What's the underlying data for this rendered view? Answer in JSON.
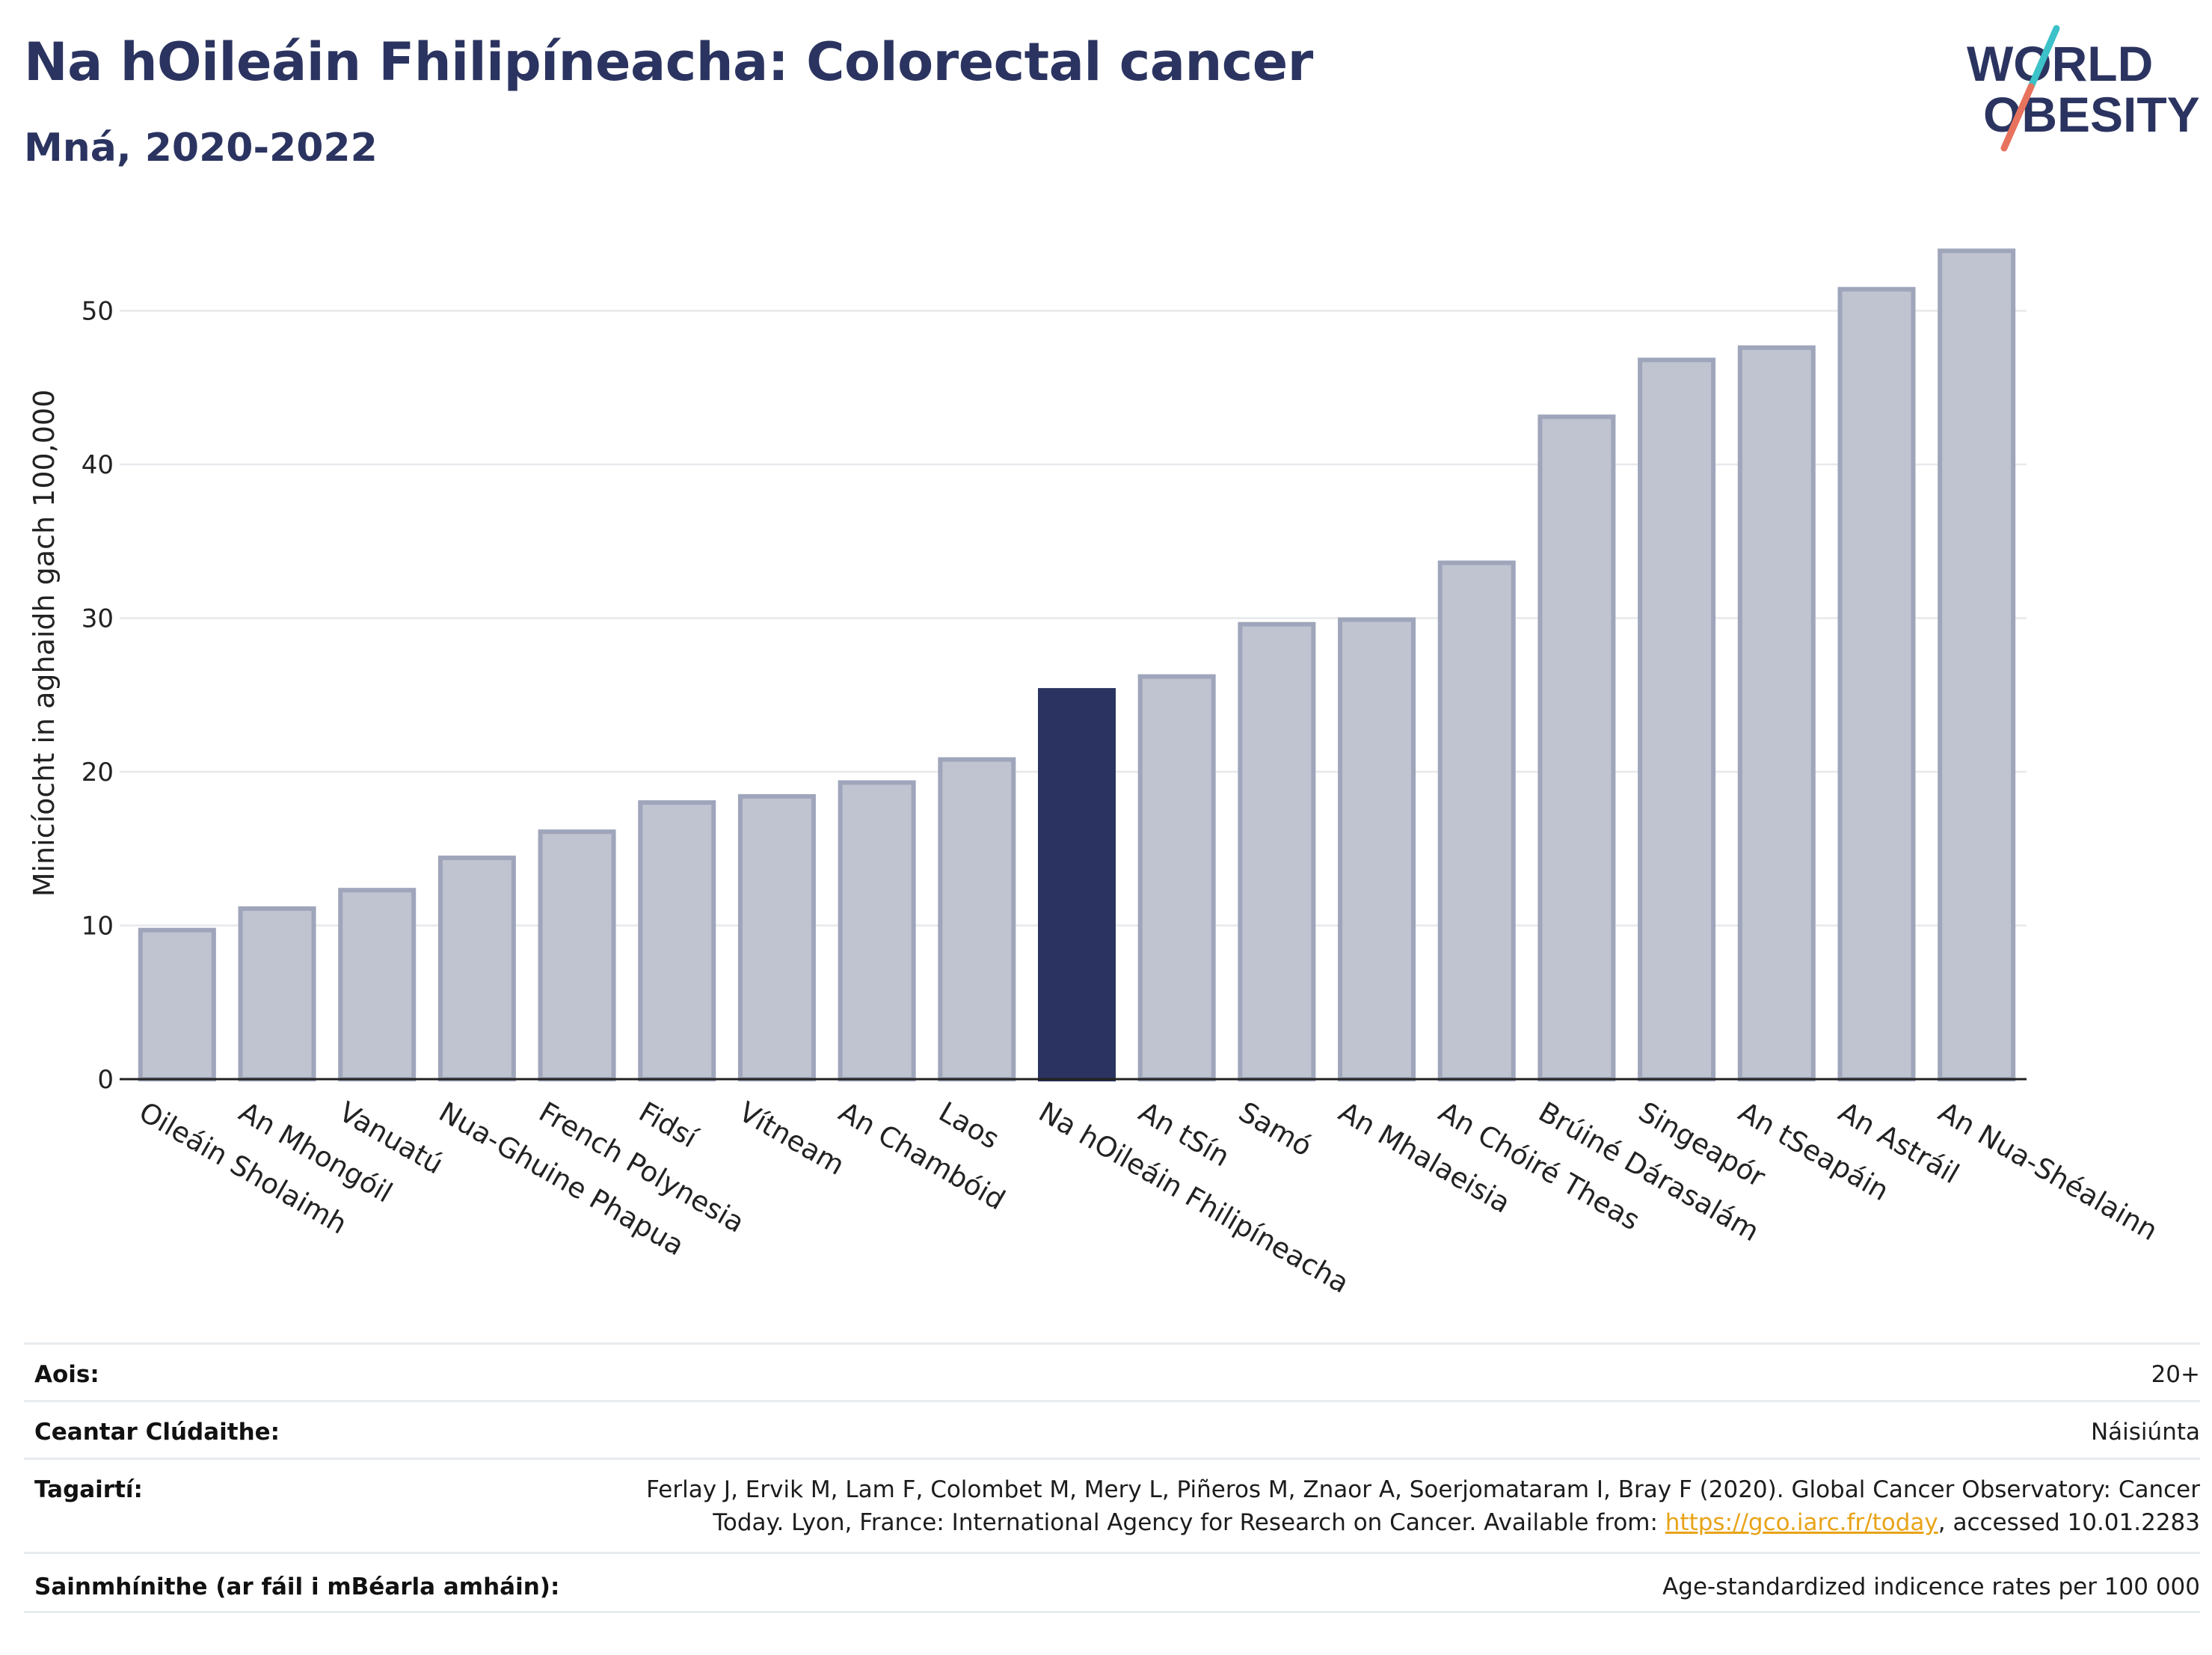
{
  "header": {
    "title": "Na hOileáin Fhilipíneacha: Colorectal cancer",
    "subtitle": "Mná, 2020-2022"
  },
  "logo": {
    "line1": "WORLD",
    "line2": "OBESITY"
  },
  "colors": {
    "title": "#2b3460",
    "bar_highlight": "#2b3460",
    "bar_default_fill": "#c0c3d0",
    "bar_default_stroke": "#9fa5ba",
    "logo_teal": "#3cc2c8",
    "logo_coral": "#e7735e",
    "link": "#e8a317"
  },
  "chart_data": {
    "type": "bar",
    "title": "",
    "xlabel": "",
    "ylabel": "Minicíocht in aghaidh gach 100,000",
    "ylim": [
      0,
      55
    ],
    "yticks": [
      0,
      10,
      20,
      30,
      40,
      50
    ],
    "grid": true,
    "highlight": "Na hOileáin Fhilipíneacha",
    "categories": [
      "Oileáin Sholaimh",
      "An Mhongóil",
      "Vanuatú",
      "Nua-Ghuine Phapua",
      "French Polynesia",
      "Fidsí",
      "Vítneam",
      "An Chambóid",
      "Laos",
      "Na hOileáin Fhilipíneacha",
      "An tSín",
      "Samó",
      "An Mhalaeisia",
      "An Chóiré Theas",
      "Brúiné Dárasalám",
      "Singeapór",
      "An tSeapáin",
      "An Astráil",
      "An Nua-Shéalainn"
    ],
    "values": [
      9.7,
      11.1,
      12.3,
      14.4,
      16.1,
      18.0,
      18.4,
      19.3,
      20.8,
      25.3,
      26.2,
      29.6,
      29.9,
      33.6,
      43.1,
      46.8,
      47.6,
      51.4,
      53.9
    ]
  },
  "meta": {
    "age_label": "Aois:",
    "age_value": "20+",
    "coverage_label": "Ceantar Clúdaithe:",
    "coverage_value": "Náisiúnta",
    "references_label": "Tagairtí:",
    "references_line1": "Ferlay J, Ervik M, Lam F, Colombet M, Mery L, Piñeros M, Znaor A, Soerjomataram I, Bray F (2020). Global Cancer Observatory: Cancer",
    "references_line2_pre": "Today. Lyon, France: International Agency for Research on Cancer. Available from: ",
    "references_link": "https://gco.iarc.fr/today",
    "references_line2_post": ", accessed 10.01.2283",
    "definitions_label": "Sainmhínithe (ar fáil i mBéarla amháin):",
    "definitions_value": "Age-standardized indicence rates per 100 000"
  }
}
